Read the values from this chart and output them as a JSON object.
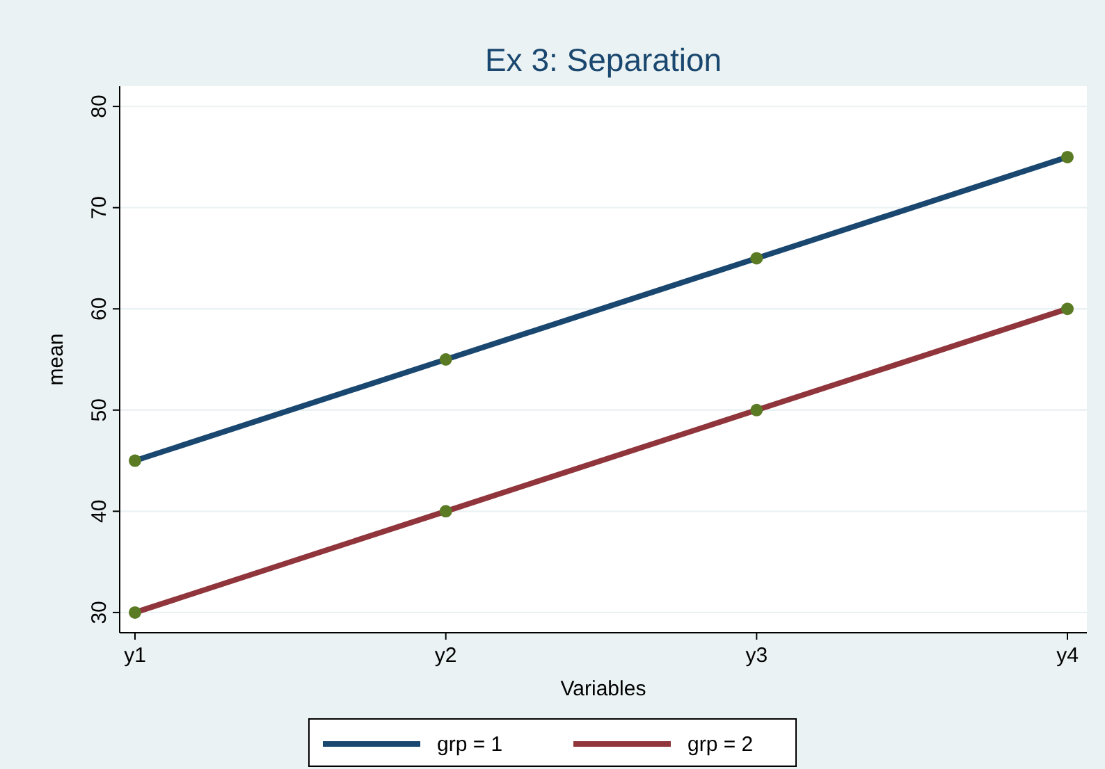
{
  "chart_data": {
    "type": "line",
    "title": "Ex 3: Separation",
    "xlabel": "Variables",
    "ylabel": "mean",
    "categories": [
      "y1",
      "y2",
      "y3",
      "y4"
    ],
    "series": [
      {
        "name": "grp = 1",
        "color": "#1a476f",
        "values": [
          45,
          55,
          65,
          75
        ]
      },
      {
        "name": "grp = 2",
        "color": "#90353b",
        "values": [
          30,
          40,
          50,
          60
        ]
      }
    ],
    "ylim": [
      28,
      82
    ],
    "yticks": [
      30,
      40,
      50,
      60,
      70,
      80
    ],
    "grid": "y",
    "legend": "bottom",
    "marker": "circle",
    "line_style": "solid"
  }
}
